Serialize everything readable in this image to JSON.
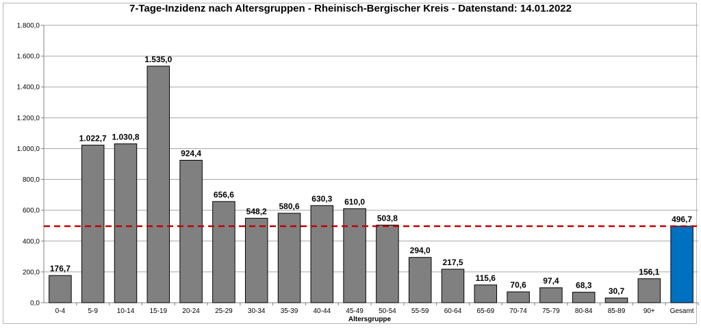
{
  "chart_data": {
    "type": "bar",
    "title": "7-Tage-Inzidenz nach Altersgruppen - Rheinisch-Bergischer Kreis - Datenstand: 14.01.2022",
    "xlabel": "Altersgruppe",
    "ylabel": "",
    "ylim": [
      0,
      1800
    ],
    "yticks": [
      "0,0",
      "200,0",
      "400,0",
      "600,0",
      "800,0",
      "1.000,0",
      "1.200,0",
      "1.400,0",
      "1.600,0",
      "1.800,0"
    ],
    "categories": [
      "0-4",
      "5-9",
      "10-14",
      "15-19",
      "20-24",
      "25-29",
      "30-34",
      "35-39",
      "40-44",
      "45-49",
      "50-54",
      "55-59",
      "60-64",
      "65-69",
      "70-74",
      "75-79",
      "80-84",
      "85-89",
      "90+",
      "Gesamt"
    ],
    "values": [
      176.7,
      1022.7,
      1030.8,
      1535.0,
      924.4,
      656.6,
      548.2,
      580.6,
      630.3,
      610.0,
      503.8,
      294.0,
      217.5,
      115.6,
      70.6,
      97.4,
      68.3,
      30.7,
      156.1,
      496.7
    ],
    "value_labels": [
      "176,7",
      "1.022,7",
      "1.030,8",
      "1.535,0",
      "924,4",
      "656,6",
      "548,2",
      "580,6",
      "630,3",
      "610,0",
      "503,8",
      "294,0",
      "217,5",
      "115,6",
      "70,6",
      "97,4",
      "68,3",
      "30,7",
      "156,1",
      "496,7"
    ],
    "reference_line": 496.7,
    "grid": true,
    "legend": "none",
    "colors": {
      "bar": "#808080",
      "highlight_bar": "#0070c0",
      "reference_line": "#c00000",
      "grid": "#a6a6a6"
    }
  }
}
